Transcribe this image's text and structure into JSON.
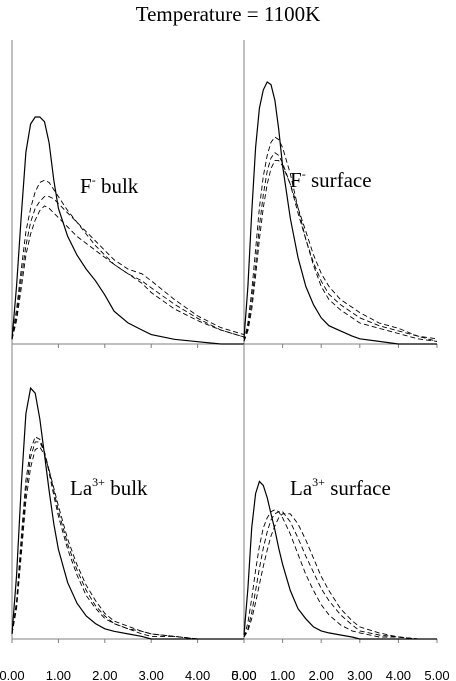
{
  "title": "Temperature = 1100K",
  "colors": {
    "line": "#000000",
    "axis": "#808080",
    "background": "#ffffff"
  },
  "chart_data": {
    "type": "line",
    "title": "Temperature = 1100K",
    "xlabel": "",
    "ylabel": "",
    "xlim": [
      0,
      5
    ],
    "ylim": [
      0,
      1
    ],
    "x_ticks": [
      "0.00",
      "1.00",
      "2.00",
      "3.00",
      "4.00",
      "5.00"
    ],
    "grid": false,
    "legend": "none",
    "panels": [
      {
        "label_main": "F",
        "label_sup": "-",
        "label_rest": " bulk",
        "series": [
          {
            "style": "solid",
            "x": [
              0,
              0.1,
              0.2,
              0.3,
              0.4,
              0.5,
              0.6,
              0.7,
              0.8,
              0.9,
              1.0,
              1.2,
              1.4,
              1.6,
              1.8,
              2.0,
              2.2,
              2.5,
              2.8,
              3.0,
              3.5,
              4.0,
              4.5,
              5.0
            ],
            "y": [
              0.02,
              0.25,
              0.55,
              0.82,
              0.94,
              0.97,
              0.97,
              0.95,
              0.86,
              0.7,
              0.58,
              0.46,
              0.38,
              0.32,
              0.27,
              0.21,
              0.14,
              0.09,
              0.06,
              0.04,
              0.02,
              0.01,
              0.0,
              0.0
            ]
          },
          {
            "style": "dashed",
            "x": [
              0,
              0.1,
              0.2,
              0.3,
              0.4,
              0.5,
              0.6,
              0.7,
              0.8,
              0.9,
              1.0,
              1.2,
              1.4,
              1.6,
              1.8,
              2.0,
              2.2,
              2.5,
              2.8,
              3.0,
              3.5,
              4.0,
              4.5,
              5.0
            ],
            "y": [
              0.02,
              0.15,
              0.32,
              0.48,
              0.58,
              0.65,
              0.69,
              0.7,
              0.69,
              0.66,
              0.63,
              0.57,
              0.52,
              0.47,
              0.42,
              0.38,
              0.34,
              0.3,
              0.26,
              0.22,
              0.15,
              0.1,
              0.06,
              0.03
            ]
          },
          {
            "style": "dashed",
            "x": [
              0,
              0.1,
              0.2,
              0.3,
              0.4,
              0.5,
              0.6,
              0.7,
              0.8,
              0.9,
              1.0,
              1.2,
              1.4,
              1.6,
              1.8,
              2.0,
              2.2,
              2.5,
              2.8,
              3.0,
              3.5,
              4.0,
              4.5,
              5.0
            ],
            "y": [
              0.02,
              0.12,
              0.28,
              0.42,
              0.52,
              0.58,
              0.61,
              0.63,
              0.63,
              0.62,
              0.6,
              0.56,
              0.52,
              0.48,
              0.44,
              0.4,
              0.36,
              0.32,
              0.3,
              0.27,
              0.19,
              0.12,
              0.07,
              0.04
            ]
          },
          {
            "style": "dashed",
            "x": [
              0,
              0.1,
              0.2,
              0.3,
              0.4,
              0.5,
              0.6,
              0.7,
              0.8,
              0.9,
              1.0,
              1.2,
              1.4,
              1.6,
              1.8,
              2.0,
              2.2,
              2.5,
              2.8,
              3.0,
              3.5,
              4.0,
              4.5,
              5.0
            ],
            "y": [
              0.02,
              0.1,
              0.24,
              0.38,
              0.47,
              0.53,
              0.57,
              0.59,
              0.58,
              0.56,
              0.54,
              0.5,
              0.46,
              0.43,
              0.4,
              0.37,
              0.34,
              0.3,
              0.27,
              0.24,
              0.17,
              0.11,
              0.06,
              0.03
            ]
          }
        ]
      },
      {
        "label_main": "F",
        "label_sup": "-",
        "label_rest": " surface",
        "series": [
          {
            "style": "solid",
            "x": [
              0,
              0.1,
              0.2,
              0.3,
              0.4,
              0.5,
              0.6,
              0.7,
              0.8,
              0.9,
              1.0,
              1.2,
              1.4,
              1.6,
              1.8,
              2.0,
              2.2,
              2.5,
              2.8,
              3.0,
              3.5,
              4.0,
              4.5,
              5.0
            ],
            "y": [
              0.02,
              0.22,
              0.5,
              0.75,
              0.9,
              0.97,
              1.0,
              0.99,
              0.93,
              0.82,
              0.68,
              0.48,
              0.33,
              0.22,
              0.15,
              0.1,
              0.07,
              0.05,
              0.03,
              0.02,
              0.01,
              0.0,
              0.0,
              0.0
            ]
          },
          {
            "style": "dashed",
            "x": [
              0,
              0.1,
              0.2,
              0.3,
              0.4,
              0.5,
              0.6,
              0.7,
              0.8,
              0.9,
              1.0,
              1.2,
              1.4,
              1.6,
              1.8,
              2.0,
              2.2,
              2.5,
              2.8,
              3.0,
              3.5,
              4.0,
              4.5,
              5.0
            ],
            "y": [
              0.01,
              0.08,
              0.2,
              0.36,
              0.52,
              0.64,
              0.72,
              0.77,
              0.79,
              0.78,
              0.75,
              0.65,
              0.52,
              0.4,
              0.3,
              0.22,
              0.17,
              0.13,
              0.1,
              0.08,
              0.06,
              0.04,
              0.02,
              0.01
            ]
          },
          {
            "style": "dashed",
            "x": [
              0,
              0.1,
              0.2,
              0.3,
              0.4,
              0.5,
              0.6,
              0.7,
              0.8,
              0.9,
              1.0,
              1.2,
              1.4,
              1.6,
              1.8,
              2.0,
              2.2,
              2.5,
              2.8,
              3.0,
              3.5,
              4.0,
              4.5,
              5.0
            ],
            "y": [
              0.01,
              0.06,
              0.16,
              0.3,
              0.45,
              0.57,
              0.66,
              0.71,
              0.73,
              0.72,
              0.69,
              0.61,
              0.5,
              0.4,
              0.31,
              0.24,
              0.19,
              0.15,
              0.12,
              0.1,
              0.07,
              0.05,
              0.03,
              0.01
            ]
          },
          {
            "style": "dashed",
            "x": [
              0,
              0.1,
              0.2,
              0.3,
              0.4,
              0.5,
              0.6,
              0.7,
              0.8,
              0.9,
              1.0,
              1.2,
              1.4,
              1.6,
              1.8,
              2.0,
              2.2,
              2.5,
              2.8,
              3.0,
              3.5,
              4.0,
              4.5,
              5.0
            ],
            "y": [
              0.01,
              0.05,
              0.13,
              0.26,
              0.4,
              0.52,
              0.61,
              0.67,
              0.7,
              0.7,
              0.68,
              0.61,
              0.52,
              0.43,
              0.34,
              0.27,
              0.22,
              0.17,
              0.14,
              0.12,
              0.08,
              0.06,
              0.03,
              0.02
            ]
          }
        ]
      },
      {
        "label_main": "La",
        "label_sup": "3+",
        "label_rest": " bulk",
        "series": [
          {
            "style": "solid",
            "x": [
              0,
              0.1,
              0.2,
              0.3,
              0.4,
              0.5,
              0.6,
              0.7,
              0.8,
              0.9,
              1.0,
              1.2,
              1.4,
              1.6,
              1.8,
              2.0,
              2.2,
              2.5,
              2.8,
              3.0,
              3.5,
              4.0,
              4.5,
              5.0
            ],
            "y": [
              0.02,
              0.25,
              0.6,
              0.88,
              0.98,
              0.96,
              0.86,
              0.72,
              0.58,
              0.45,
              0.35,
              0.22,
              0.14,
              0.09,
              0.06,
              0.04,
              0.03,
              0.02,
              0.01,
              0.0,
              0.0,
              0.0,
              0.0,
              0.0
            ]
          },
          {
            "style": "dashed",
            "x": [
              0,
              0.1,
              0.2,
              0.3,
              0.4,
              0.5,
              0.6,
              0.7,
              0.8,
              0.9,
              1.0,
              1.2,
              1.4,
              1.6,
              1.8,
              2.0,
              2.2,
              2.5,
              2.8,
              3.0,
              3.5,
              4.0,
              4.5,
              5.0
            ],
            "y": [
              0.02,
              0.15,
              0.4,
              0.62,
              0.74,
              0.79,
              0.78,
              0.73,
              0.65,
              0.56,
              0.48,
              0.35,
              0.25,
              0.17,
              0.12,
              0.08,
              0.06,
              0.04,
              0.02,
              0.01,
              0.01,
              0.0,
              0.0,
              0.0
            ]
          },
          {
            "style": "dashed",
            "x": [
              0,
              0.1,
              0.2,
              0.3,
              0.4,
              0.5,
              0.6,
              0.7,
              0.8,
              0.9,
              1.0,
              1.2,
              1.4,
              1.6,
              1.8,
              2.0,
              2.2,
              2.5,
              2.8,
              3.0,
              3.5,
              4.0,
              4.5,
              5.0
            ],
            "y": [
              0.02,
              0.13,
              0.36,
              0.58,
              0.71,
              0.77,
              0.77,
              0.73,
              0.66,
              0.58,
              0.5,
              0.37,
              0.27,
              0.19,
              0.13,
              0.09,
              0.06,
              0.04,
              0.03,
              0.02,
              0.01,
              0.0,
              0.0,
              0.0
            ]
          },
          {
            "style": "dashed",
            "x": [
              0,
              0.1,
              0.2,
              0.3,
              0.4,
              0.5,
              0.6,
              0.7,
              0.8,
              0.9,
              1.0,
              1.2,
              1.4,
              1.6,
              1.8,
              2.0,
              2.2,
              2.5,
              2.8,
              3.0,
              3.5,
              4.0,
              4.5,
              5.0
            ],
            "y": [
              0.02,
              0.12,
              0.33,
              0.54,
              0.67,
              0.74,
              0.75,
              0.72,
              0.66,
              0.59,
              0.52,
              0.39,
              0.29,
              0.21,
              0.15,
              0.1,
              0.07,
              0.05,
              0.03,
              0.02,
              0.01,
              0.0,
              0.0,
              0.0
            ]
          }
        ]
      },
      {
        "label_main": "La",
        "label_sup": "3+",
        "label_rest": " surface",
        "series": [
          {
            "style": "solid",
            "x": [
              0,
              0.1,
              0.2,
              0.3,
              0.4,
              0.5,
              0.6,
              0.7,
              0.8,
              0.9,
              1.0,
              1.2,
              1.4,
              1.6,
              1.8,
              2.0,
              2.2,
              2.5,
              2.8,
              3.0,
              3.5,
              4.0,
              4.5,
              5.0
            ],
            "y": [
              0.02,
              0.25,
              0.55,
              0.72,
              0.78,
              0.76,
              0.7,
              0.62,
              0.54,
              0.45,
              0.37,
              0.24,
              0.15,
              0.1,
              0.06,
              0.04,
              0.03,
              0.02,
              0.01,
              0.0,
              0.0,
              0.0,
              0.0,
              0.0
            ]
          },
          {
            "style": "dashed",
            "x": [
              0,
              0.1,
              0.2,
              0.3,
              0.4,
              0.5,
              0.6,
              0.7,
              0.8,
              0.9,
              1.0,
              1.2,
              1.4,
              1.6,
              1.8,
              2.0,
              2.2,
              2.5,
              2.8,
              3.0,
              3.5,
              4.0,
              4.5,
              5.0
            ],
            "y": [
              0.01,
              0.08,
              0.2,
              0.34,
              0.46,
              0.55,
              0.6,
              0.63,
              0.64,
              0.63,
              0.6,
              0.52,
              0.42,
              0.32,
              0.24,
              0.17,
              0.12,
              0.07,
              0.04,
              0.03,
              0.01,
              0.01,
              0.0,
              0.0
            ]
          },
          {
            "style": "dashed",
            "x": [
              0,
              0.1,
              0.2,
              0.3,
              0.4,
              0.5,
              0.6,
              0.7,
              0.8,
              0.9,
              1.0,
              1.2,
              1.4,
              1.6,
              1.8,
              2.0,
              2.2,
              2.5,
              2.8,
              3.0,
              3.5,
              4.0,
              4.5,
              5.0
            ],
            "y": [
              0.01,
              0.05,
              0.13,
              0.24,
              0.35,
              0.45,
              0.53,
              0.59,
              0.62,
              0.63,
              0.63,
              0.58,
              0.5,
              0.41,
              0.33,
              0.25,
              0.19,
              0.12,
              0.07,
              0.04,
              0.02,
              0.01,
              0.0,
              0.0
            ]
          },
          {
            "style": "dashed",
            "x": [
              0,
              0.1,
              0.2,
              0.3,
              0.4,
              0.5,
              0.6,
              0.7,
              0.8,
              0.9,
              1.0,
              1.2,
              1.4,
              1.6,
              1.8,
              2.0,
              2.2,
              2.5,
              2.8,
              3.0,
              3.5,
              4.0,
              4.5,
              5.0
            ],
            "y": [
              0.01,
              0.04,
              0.1,
              0.18,
              0.27,
              0.36,
              0.44,
              0.51,
              0.56,
              0.6,
              0.62,
              0.62,
              0.57,
              0.49,
              0.4,
              0.31,
              0.24,
              0.15,
              0.09,
              0.06,
              0.03,
              0.01,
              0.0,
              0.0
            ]
          }
        ]
      }
    ]
  }
}
